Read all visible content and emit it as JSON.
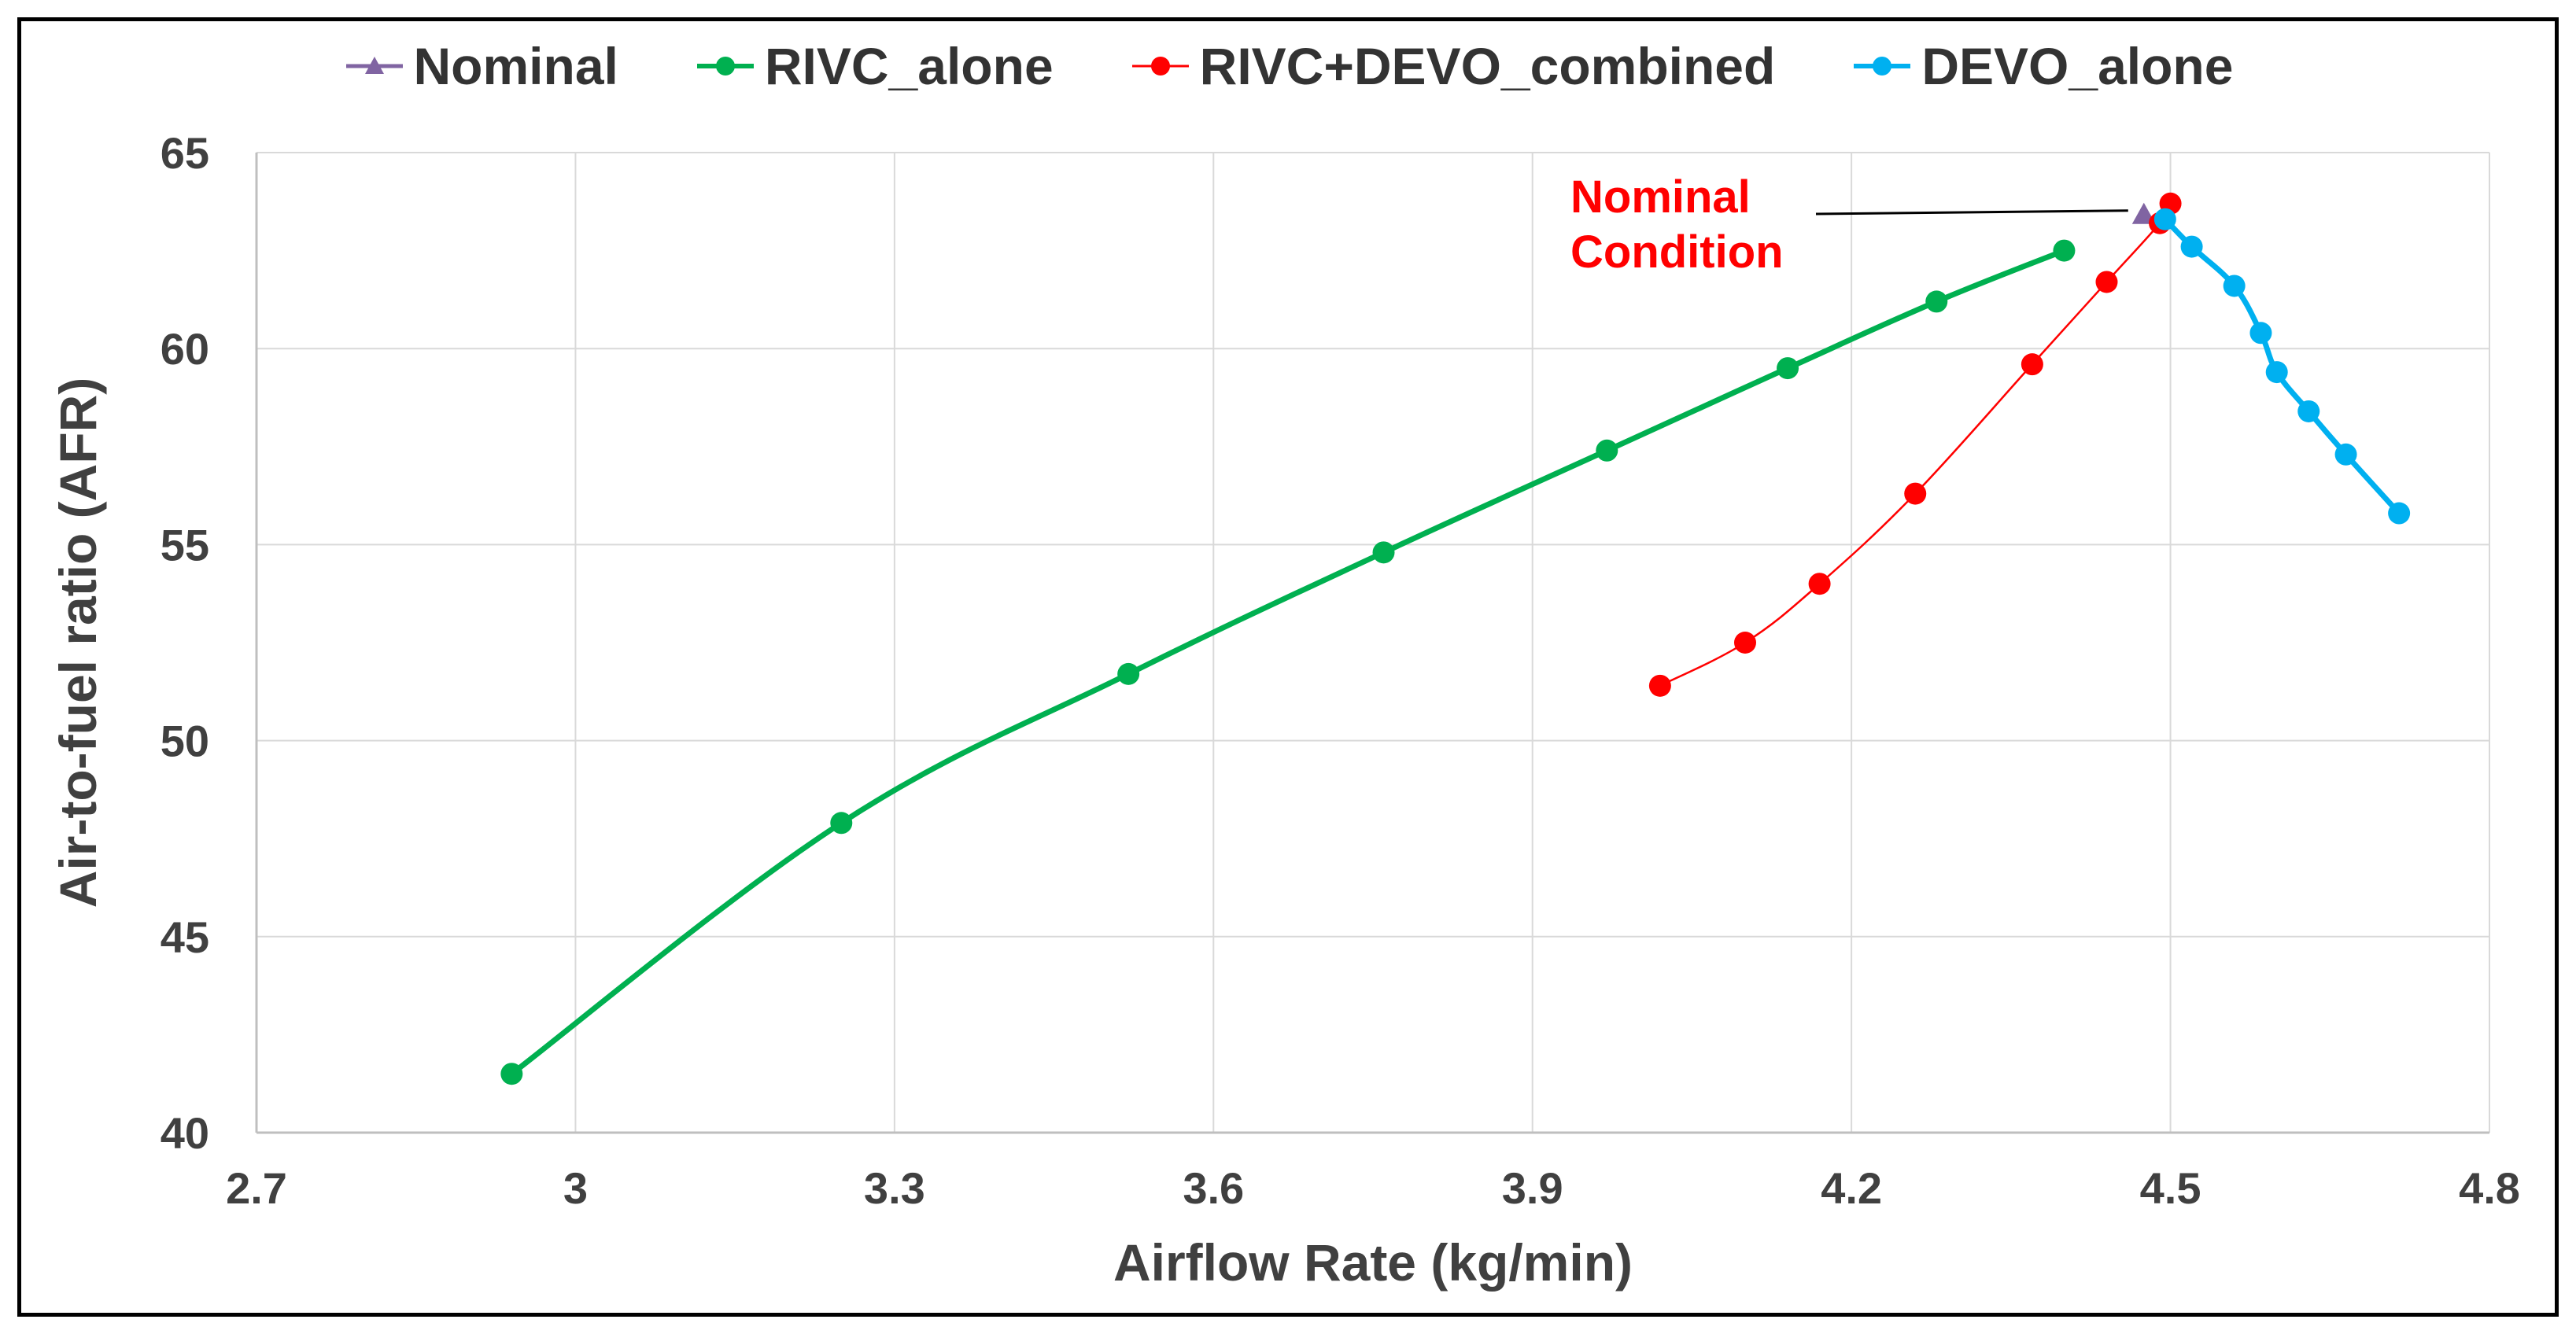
{
  "chart_data": {
    "type": "line",
    "title": "",
    "xlabel": "Airflow Rate (kg/min)",
    "ylabel": "Air-to-fuel ratio (AFR)",
    "xlim": [
      2.7,
      4.8
    ],
    "ylim": [
      40,
      65
    ],
    "x_ticks": [
      "2.7",
      "3",
      "3.3",
      "3.6",
      "3.9",
      "4.2",
      "4.5",
      "4.8"
    ],
    "y_ticks": [
      "40",
      "45",
      "50",
      "55",
      "60",
      "65"
    ],
    "grid": "vertical and horizontal",
    "legend_position": "top",
    "series": [
      {
        "name": "Nominal",
        "color": "#8064a2",
        "marker": "triangle",
        "x": [
          4.475
        ],
        "y": [
          63.4
        ]
      },
      {
        "name": "RIVC_alone",
        "color": "#00b050",
        "marker": "circle",
        "line": "thick",
        "x": [
          2.94,
          3.25,
          3.52,
          3.76,
          3.97,
          4.14,
          4.28,
          4.4
        ],
        "y": [
          41.5,
          47.9,
          51.7,
          54.8,
          57.4,
          59.5,
          61.2,
          62.5
        ]
      },
      {
        "name": "RIVC+DEVO_combined",
        "color": "#ff0000",
        "marker": "circle",
        "line": "thin",
        "x": [
          4.02,
          4.1,
          4.17,
          4.26,
          4.37,
          4.44,
          4.49,
          4.5
        ],
        "y": [
          51.4,
          52.5,
          54.0,
          56.3,
          59.6,
          61.7,
          63.2,
          63.7
        ]
      },
      {
        "name": "DEVO_alone",
        "color": "#00b0f0",
        "marker": "circle",
        "line": "thick",
        "x": [
          4.495,
          4.52,
          4.56,
          4.585,
          4.6,
          4.63,
          4.665,
          4.715
        ],
        "y": [
          63.3,
          62.6,
          61.6,
          60.4,
          59.4,
          58.4,
          57.3,
          55.8
        ]
      }
    ],
    "annotations": [
      {
        "text_line1": "Nominal",
        "text_line2": "Condition",
        "color": "#ff0000",
        "points_to_x": 4.475,
        "points_to_y": 63.4
      }
    ]
  }
}
